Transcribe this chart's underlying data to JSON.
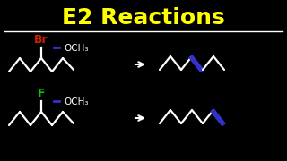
{
  "title": "E2 Reactions",
  "title_color": "#FFFF00",
  "bg_color": "#000000",
  "line_color": "#FFFFFF",
  "br_label": "Br",
  "br_color": "#CC2200",
  "f_label": "F",
  "f_color": "#00CC00",
  "och3_label": "OCH₃",
  "blue_color": "#3333CC",
  "title_fontsize": 18,
  "chem_fontsize": 9,
  "lw": 1.6
}
